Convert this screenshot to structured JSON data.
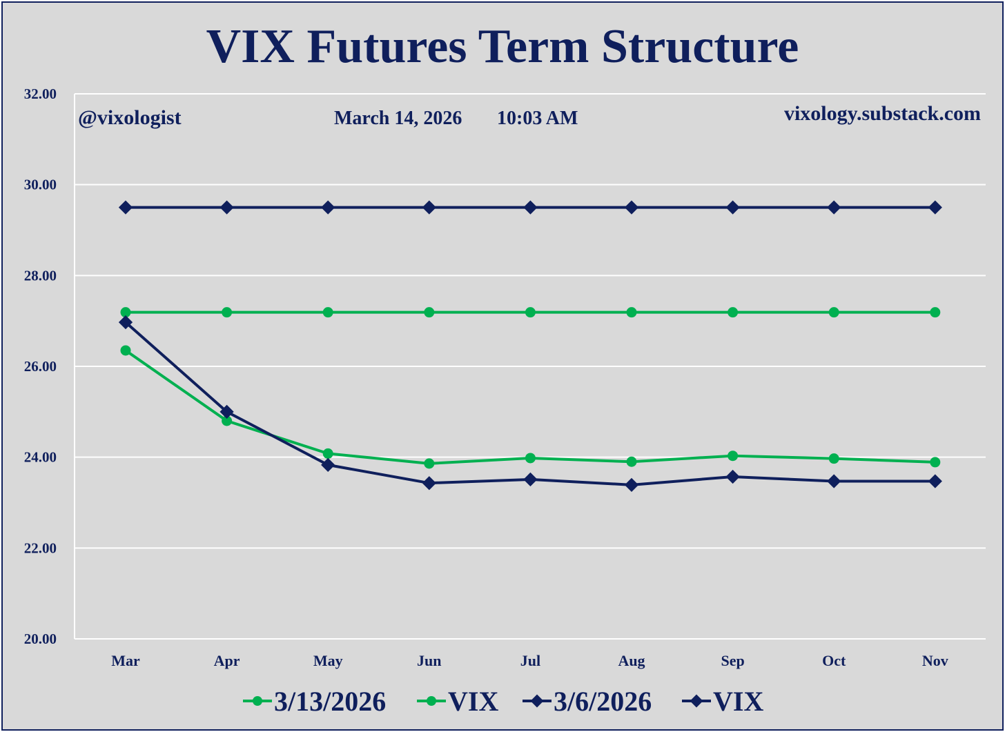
{
  "chart_data": {
    "type": "line",
    "title": "VIX Futures Term Structure",
    "annotations": {
      "handle": "@vixologist",
      "date": "March 14, 2026",
      "time": "10:03 AM",
      "site": "vixology.substack.com"
    },
    "categories": [
      "Mar",
      "Apr",
      "May",
      "Jun",
      "Jul",
      "Aug",
      "Sep",
      "Oct",
      "Nov"
    ],
    "ylim": [
      20,
      32
    ],
    "yticks": [
      "20.00",
      "22.00",
      "24.00",
      "26.00",
      "28.00",
      "30.00",
      "32.00"
    ],
    "grid": true,
    "legend_position": "bottom",
    "series": [
      {
        "name": "3/13/2026",
        "color": "#00b050",
        "marker": "circle",
        "values": [
          26.35,
          24.8,
          24.08,
          23.86,
          23.98,
          23.9,
          24.03,
          23.97,
          23.89
        ]
      },
      {
        "name": "VIX",
        "color": "#00b050",
        "marker": "circle",
        "values": [
          27.19,
          27.19,
          27.19,
          27.19,
          27.19,
          27.19,
          27.19,
          27.19,
          27.19
        ]
      },
      {
        "name": "3/6/2026",
        "color": "#0f1f5c",
        "marker": "diamond",
        "values": [
          26.97,
          25.0,
          23.83,
          23.43,
          23.51,
          23.39,
          23.57,
          23.47,
          23.47
        ]
      },
      {
        "name": "VIX",
        "color": "#0f1f5c",
        "marker": "diamond",
        "values": [
          29.5,
          29.5,
          29.5,
          29.5,
          29.5,
          29.5,
          29.5,
          29.5,
          29.5
        ]
      }
    ]
  }
}
